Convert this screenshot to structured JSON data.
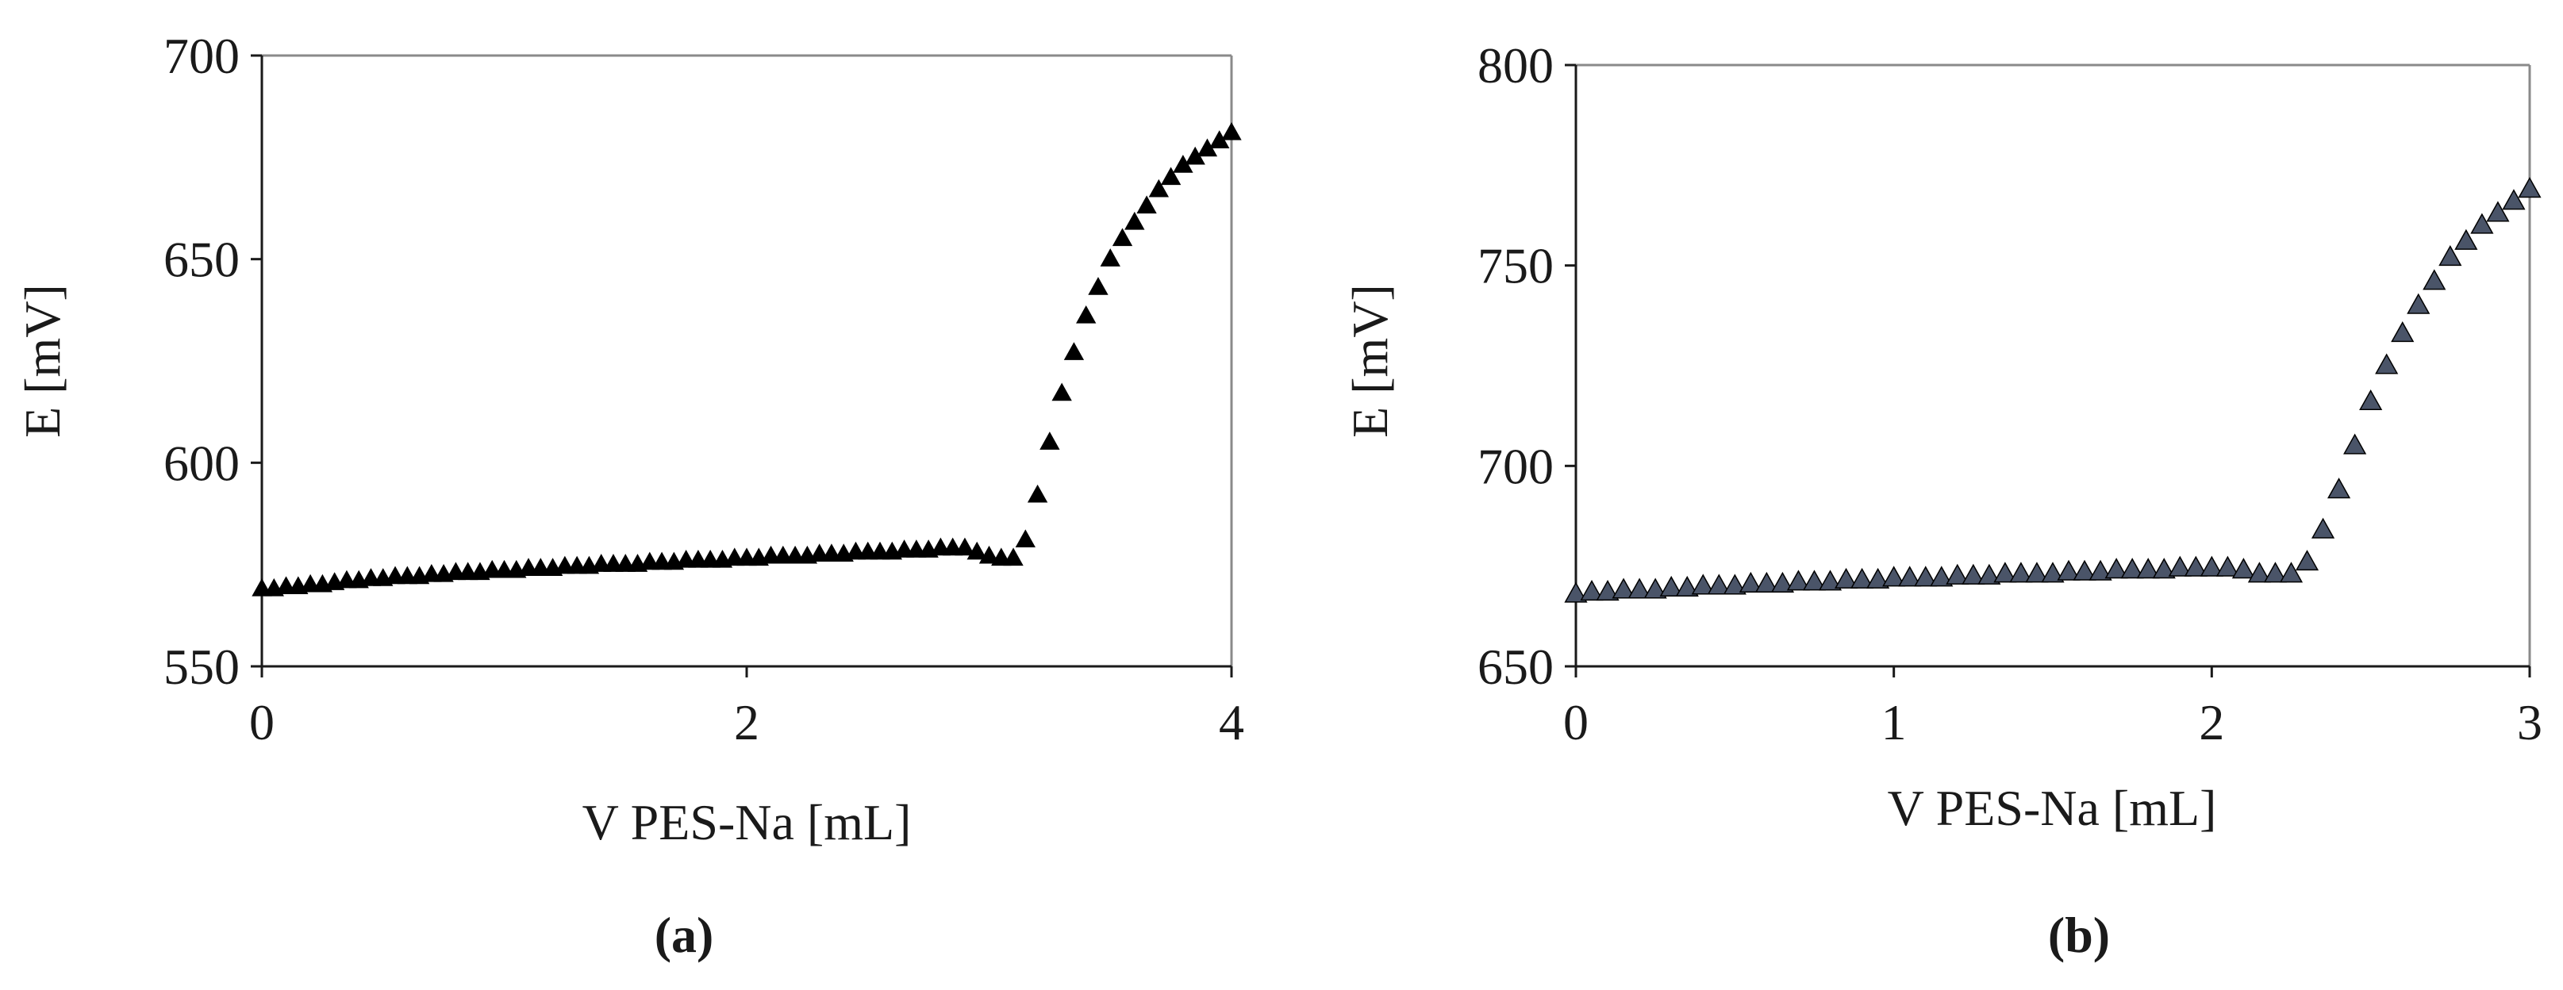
{
  "chart_data": [
    {
      "type": "scatter",
      "panel_label": "(a)",
      "xlabel": "V PES-Na [mL]",
      "ylabel": "E [mV]",
      "xlim": [
        0,
        4
      ],
      "ylim": [
        550,
        700
      ],
      "xticks": [
        0,
        2,
        4
      ],
      "yticks": [
        550,
        600,
        650,
        700
      ],
      "marker": "triangle",
      "marker_color": "#000000",
      "grid": false,
      "series": [
        {
          "x": [
            0,
            0.05,
            0.1,
            0.15,
            0.2,
            0.25,
            0.3,
            0.35,
            0.4,
            0.45,
            0.5,
            0.55,
            0.6,
            0.65,
            0.7,
            0.75,
            0.8,
            0.85,
            0.9,
            0.95,
            1.0,
            1.05,
            1.1,
            1.15,
            1.2,
            1.25,
            1.3,
            1.35,
            1.4,
            1.45,
            1.5,
            1.55,
            1.6,
            1.65,
            1.7,
            1.75,
            1.8,
            1.85,
            1.9,
            1.95,
            2.0,
            2.05,
            2.1,
            2.15,
            2.2,
            2.25,
            2.3,
            2.35,
            2.4,
            2.45,
            2.5,
            2.55,
            2.6,
            2.65,
            2.7,
            2.75,
            2.8,
            2.85,
            2.9,
            2.95,
            3.0,
            3.05,
            3.1,
            3.15,
            3.2,
            3.25,
            3.3,
            3.35,
            3.4,
            3.45,
            3.5,
            3.55,
            3.6,
            3.65,
            3.7,
            3.75,
            3.8,
            3.85,
            3.9,
            3.95,
            4.0
          ],
          "y": [
            569,
            569,
            569.5,
            569.5,
            570,
            570,
            570.5,
            571,
            571,
            571.5,
            571.5,
            572,
            572,
            572,
            572.5,
            572.5,
            573,
            573,
            573,
            573.5,
            573.5,
            573.5,
            574,
            574,
            574,
            574.5,
            574.5,
            574.5,
            575,
            575,
            575,
            575,
            575.5,
            575.5,
            575.5,
            576,
            576,
            576,
            576,
            576.5,
            576.5,
            576.5,
            577,
            577,
            577,
            577,
            577.5,
            577.5,
            577.5,
            578,
            578,
            578,
            578,
            578.5,
            578.5,
            578.5,
            579,
            579,
            579,
            578,
            577,
            576.5,
            576.5,
            581,
            592,
            605,
            617,
            627,
            636,
            643,
            650,
            655,
            659,
            663,
            667,
            670,
            673,
            675,
            677,
            679,
            681
          ]
        }
      ]
    },
    {
      "type": "scatter",
      "panel_label": "(b)",
      "xlabel": "V PES-Na [mL]",
      "ylabel": "E [mV]",
      "xlim": [
        0,
        3
      ],
      "ylim": [
        650,
        800
      ],
      "xticks": [
        0,
        1,
        2,
        3
      ],
      "yticks": [
        650,
        700,
        750,
        800
      ],
      "marker": "triangle",
      "marker_color": "#4a5468",
      "grid": false,
      "series": [
        {
          "x": [
            0,
            0.05,
            0.1,
            0.15,
            0.2,
            0.25,
            0.3,
            0.35,
            0.4,
            0.45,
            0.5,
            0.55,
            0.6,
            0.65,
            0.7,
            0.75,
            0.8,
            0.85,
            0.9,
            0.95,
            1.0,
            1.05,
            1.1,
            1.15,
            1.2,
            1.25,
            1.3,
            1.35,
            1.4,
            1.45,
            1.5,
            1.55,
            1.6,
            1.65,
            1.7,
            1.75,
            1.8,
            1.85,
            1.9,
            1.95,
            2.0,
            2.05,
            2.1,
            2.15,
            2.2,
            2.25,
            2.3,
            2.35,
            2.4,
            2.45,
            2.5,
            2.55,
            2.6,
            2.65,
            2.7,
            2.75,
            2.8,
            2.85,
            2.9,
            2.95,
            3.0
          ],
          "y": [
            668,
            668.5,
            668.5,
            669,
            669,
            669,
            669.5,
            669.5,
            670,
            670,
            670,
            670.5,
            670.5,
            670.5,
            671,
            671,
            671,
            671.5,
            671.5,
            671.5,
            672,
            672,
            672,
            672,
            672.5,
            672.5,
            672.5,
            673,
            673,
            673,
            673,
            673.5,
            673.5,
            673.5,
            674,
            674,
            674,
            674,
            674.5,
            674.5,
            674.5,
            674.5,
            674,
            673,
            673,
            673,
            676,
            684,
            694,
            705,
            716,
            725,
            733,
            740,
            746,
            752,
            756,
            760,
            763,
            766,
            769
          ]
        }
      ]
    }
  ]
}
